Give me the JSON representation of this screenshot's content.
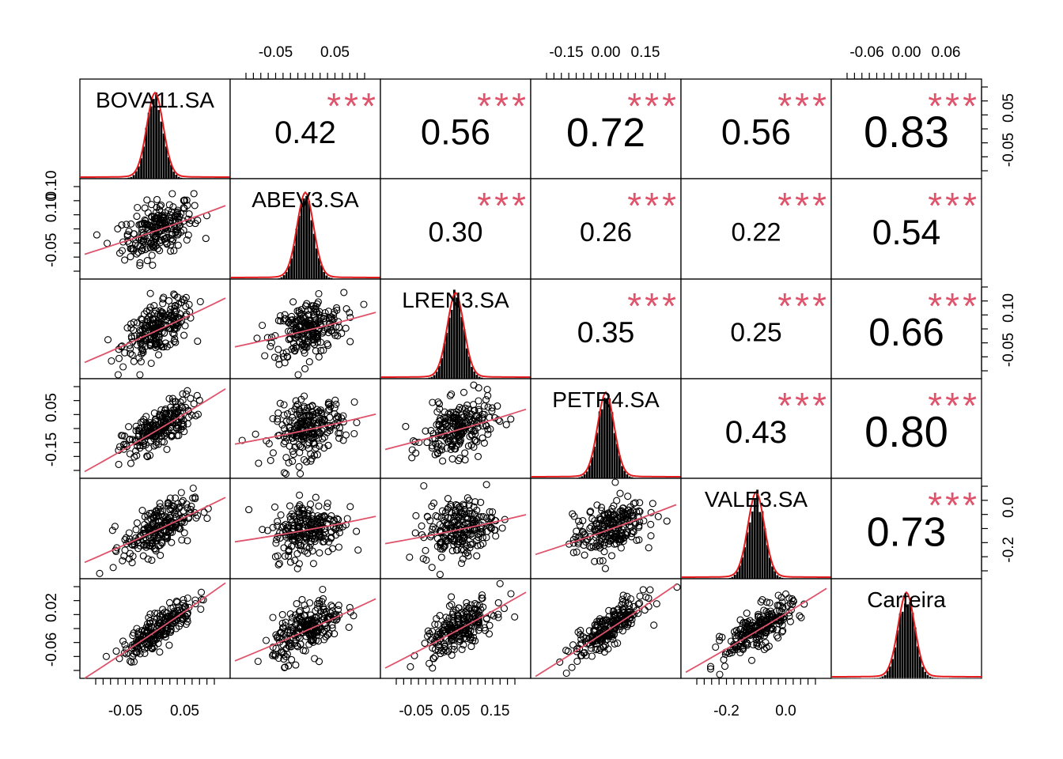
{
  "chart_data": {
    "type": "scatter",
    "variables": [
      "BOVA11.SA",
      "ABEV3.SA",
      "LREN3.SA",
      "PETR4.SA",
      "VALE3.SA",
      "Carteira"
    ],
    "correlations": {
      "BOVA11.SA": {
        "ABEV3.SA": "0.42",
        "LREN3.SA": "0.56",
        "PETR4.SA": "0.72",
        "VALE3.SA": "0.56",
        "Carteira": "0.83"
      },
      "ABEV3.SA": {
        "LREN3.SA": "0.30",
        "PETR4.SA": "0.26",
        "VALE3.SA": "0.22",
        "Carteira": "0.54"
      },
      "LREN3.SA": {
        "PETR4.SA": "0.35",
        "VALE3.SA": "0.25",
        "Carteira": "0.66"
      },
      "PETR4.SA": {
        "VALE3.SA": "0.43",
        "Carteira": "0.80"
      },
      "VALE3.SA": {
        "Carteira": "0.73"
      }
    },
    "significance": "***",
    "axes": {
      "top": [
        {
          "column": 2,
          "ticks": [
            "-0.05",
            "0.05"
          ]
        },
        {
          "column": 4,
          "ticks": [
            "-0.15",
            "0.00",
            "0.15"
          ]
        },
        {
          "column": 6,
          "ticks": [
            "-0.06",
            "0.00",
            "0.06"
          ]
        }
      ],
      "bottom": [
        {
          "column": 1,
          "ticks": [
            "-0.05",
            "0.05"
          ]
        },
        {
          "column": 3,
          "ticks": [
            "-0.05",
            "0.05",
            "0.15"
          ]
        },
        {
          "column": 5,
          "ticks": [
            "-0.2",
            "0.0"
          ]
        }
      ],
      "left": [
        {
          "row": 2,
          "ticks": [
            "-0.05",
            "0.10"
          ]
        },
        {
          "row": 4,
          "ticks": [
            "-0.15",
            "0.05"
          ]
        },
        {
          "row": 6,
          "ticks": [
            "-0.06",
            "0.02"
          ]
        }
      ],
      "right": [
        {
          "row": 1,
          "ticks": [
            "-0.05",
            "0.05"
          ]
        },
        {
          "row": 3,
          "ticks": [
            "-0.05",
            "0.10"
          ]
        },
        {
          "row": 5,
          "ticks": [
            "-0.2",
            "0.0"
          ]
        }
      ]
    },
    "ranges": {
      "BOVA11.SA": [
        -0.095,
        0.085
      ],
      "ABEV3.SA": [
        -0.085,
        0.115
      ],
      "LREN3.SA": [
        -0.095,
        0.15
      ],
      "PETR4.SA": [
        -0.22,
        0.18
      ],
      "VALE3.SA": [
        -0.31,
        0.13
      ],
      "Carteira": [
        -0.07,
        0.055
      ]
    },
    "left_axis_extra_label": "0.10",
    "colors": {
      "points": "#000000",
      "smoother": "#DF536B",
      "stars": "#DF536B",
      "density": "#E41A1C",
      "histogram": "#000000"
    },
    "grid": false,
    "legend": "none"
  }
}
